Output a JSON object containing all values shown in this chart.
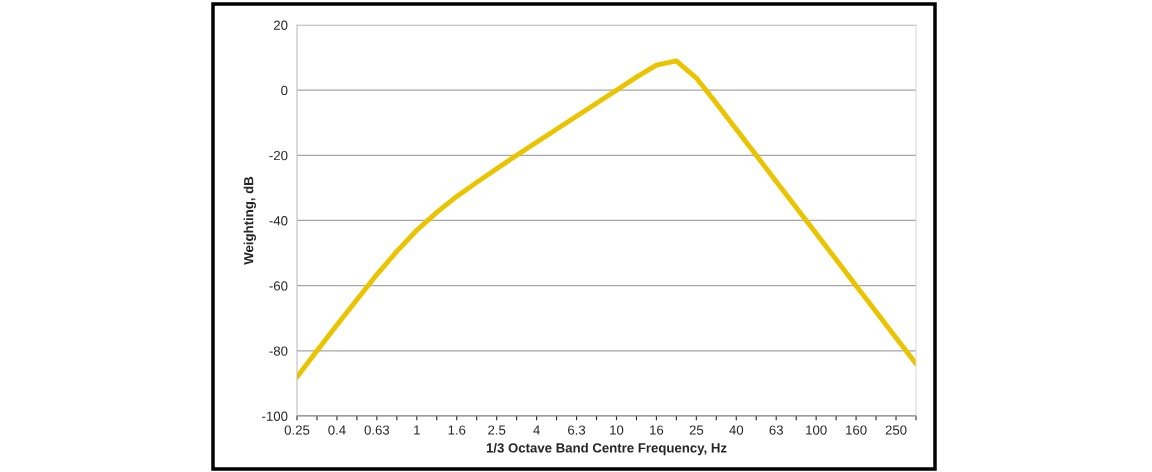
{
  "chart_data": {
    "type": "line",
    "xlabel": "1/3 Octave Band Centre Frequency, Hz",
    "ylabel": "Weighting, dB",
    "categories": [
      "0.25",
      null,
      "0.4",
      null,
      "0.63",
      null,
      "1",
      null,
      "1.6",
      null,
      "2.5",
      null,
      "4",
      null,
      "6.3",
      null,
      "10",
      null,
      "16",
      null,
      "25",
      null,
      "40",
      null,
      "63",
      null,
      "100",
      null,
      "160",
      null,
      "250",
      null
    ],
    "series": [
      {
        "color": "#ebc400",
        "values": [
          -88,
          -80,
          -72.1,
          -64.3,
          -56.6,
          -49.5,
          -43,
          -37.5,
          -32.6,
          -28.3,
          -24.1,
          -20,
          -16,
          -12,
          -8,
          -4,
          0,
          4,
          7.7,
          9,
          3.7,
          -4,
          -12,
          -20,
          -28,
          -36,
          -44,
          -52,
          -60,
          -68,
          -76,
          -84
        ]
      }
    ],
    "ylim": [
      -100,
      20
    ],
    "yticks": [
      -100,
      -80,
      -60,
      -40,
      -20,
      0,
      20
    ],
    "grid": "y",
    "marker": "none",
    "line_style": "solid"
  }
}
